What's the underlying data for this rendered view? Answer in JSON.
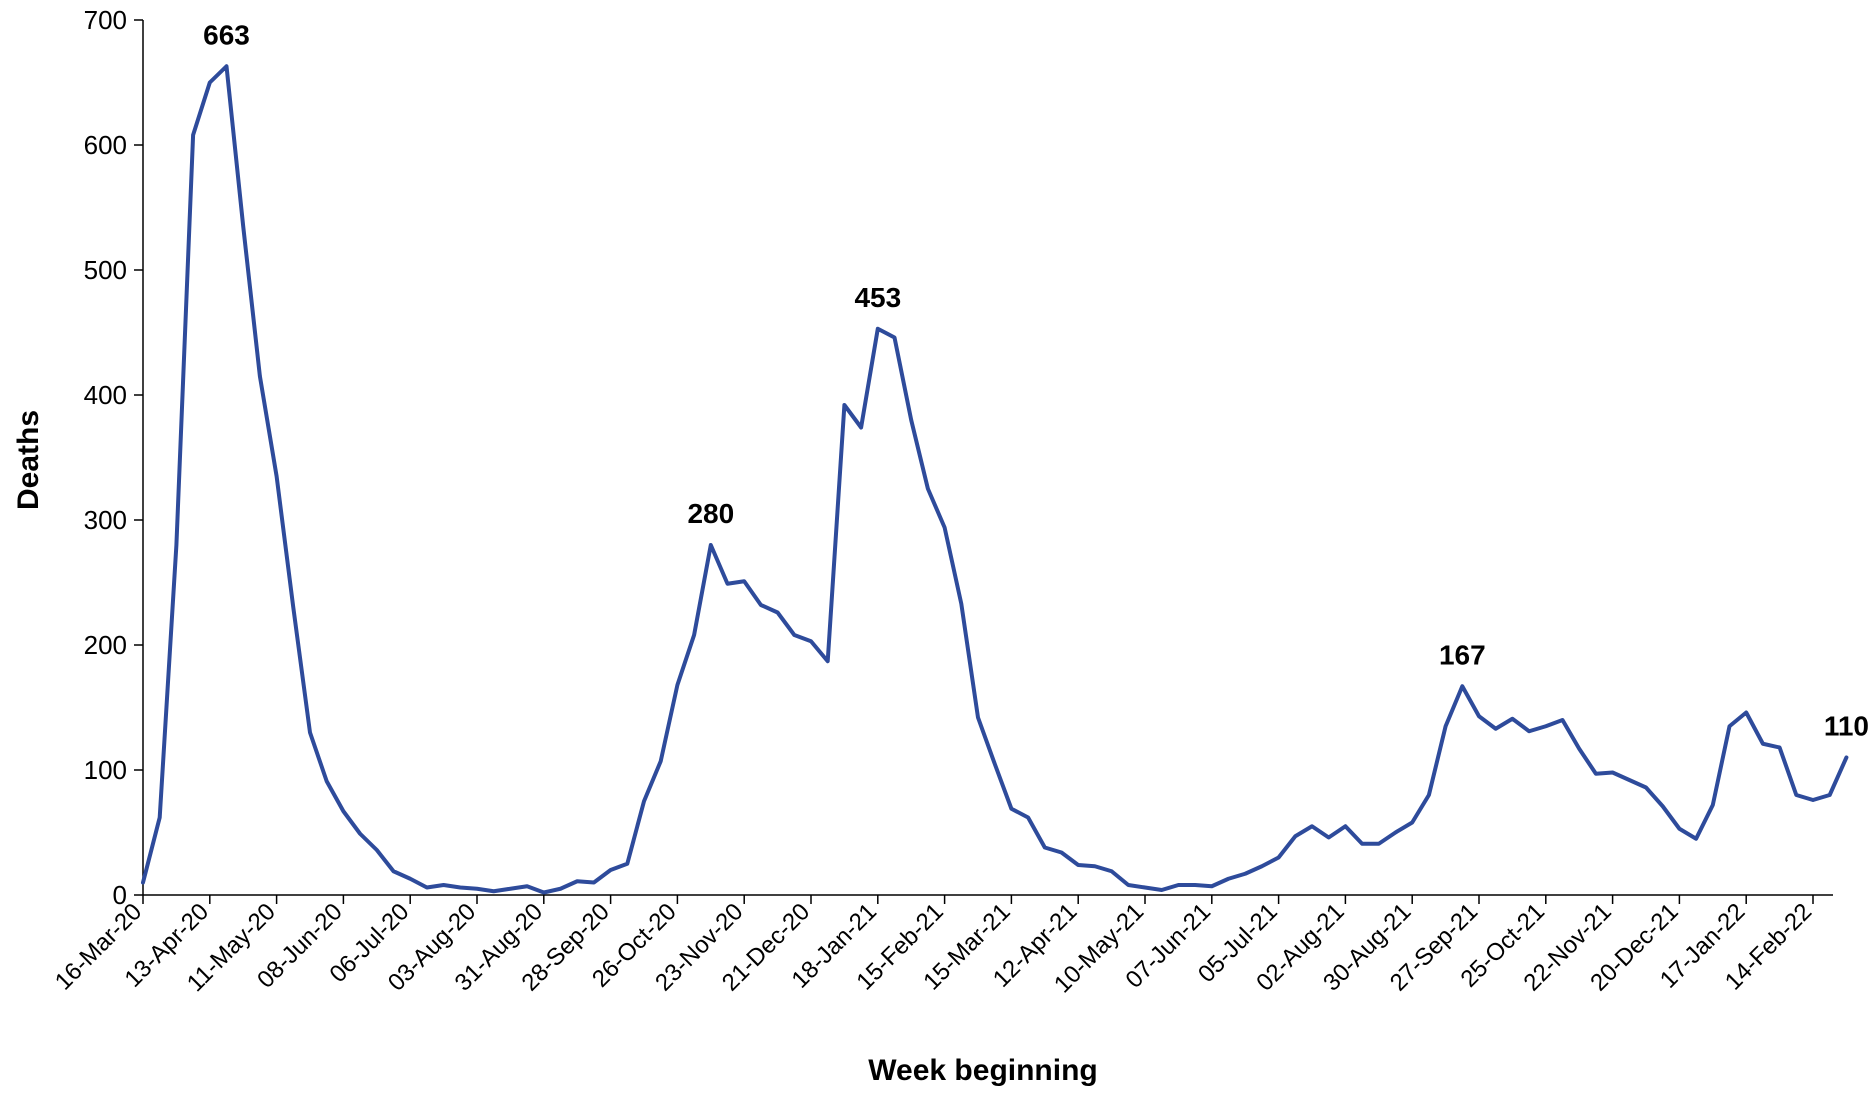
{
  "chart_data": {
    "type": "line",
    "xlabel": "Week beginning",
    "ylabel": "Deaths",
    "ylim": [
      0,
      700
    ],
    "yticks": [
      0,
      100,
      200,
      300,
      400,
      500,
      600,
      700
    ],
    "grid": false,
    "legend": "none",
    "line_color": "#2E4B9B",
    "x_start": "16-Mar-20",
    "x_tick_labels": [
      "16-Mar-20",
      "13-Apr-20",
      "11-May-20",
      "08-Jun-20",
      "06-Jul-20",
      "03-Aug-20",
      "31-Aug-20",
      "28-Sep-20",
      "26-Oct-20",
      "23-Nov-20",
      "21-Dec-20",
      "18-Jan-21",
      "15-Feb-21",
      "15-Mar-21",
      "12-Apr-21",
      "10-May-21",
      "07-Jun-21",
      "05-Jul-21",
      "02-Aug-21",
      "30-Aug-21",
      "27-Sep-21",
      "25-Oct-21",
      "22-Nov-21",
      "20-Dec-21",
      "17-Jan-22",
      "14-Feb-22"
    ],
    "series": [
      {
        "values": [
          10,
          62,
          280,
          608,
          650,
          663,
          535,
          415,
          335,
          230,
          130,
          91,
          67,
          49,
          36,
          19,
          13,
          6,
          8,
          6,
          5,
          3,
          5,
          7,
          2,
          5,
          11,
          10,
          20,
          25,
          75,
          107,
          168,
          208,
          280,
          249,
          251,
          232,
          226,
          208,
          203,
          187,
          392,
          374,
          453,
          446,
          380,
          325,
          294,
          233,
          142,
          105,
          69,
          62,
          38,
          34,
          24,
          23,
          19,
          8,
          6,
          4,
          8,
          8,
          7,
          13,
          17,
          23,
          30,
          47,
          55,
          46,
          55,
          41,
          41,
          50,
          58,
          80,
          135,
          167,
          143,
          133,
          141,
          131,
          135,
          140,
          117,
          97,
          98,
          92,
          86,
          71,
          53,
          45,
          72,
          135,
          146,
          121,
          118,
          80,
          76,
          80,
          110
        ]
      }
    ],
    "annotations": [
      {
        "index": 5,
        "value": 663,
        "label": "663"
      },
      {
        "index": 34,
        "value": 280,
        "label": "280"
      },
      {
        "index": 44,
        "value": 453,
        "label": "453"
      },
      {
        "index": 79,
        "value": 167,
        "label": "167"
      },
      {
        "index": 102,
        "value": 110,
        "label": "110"
      }
    ]
  }
}
